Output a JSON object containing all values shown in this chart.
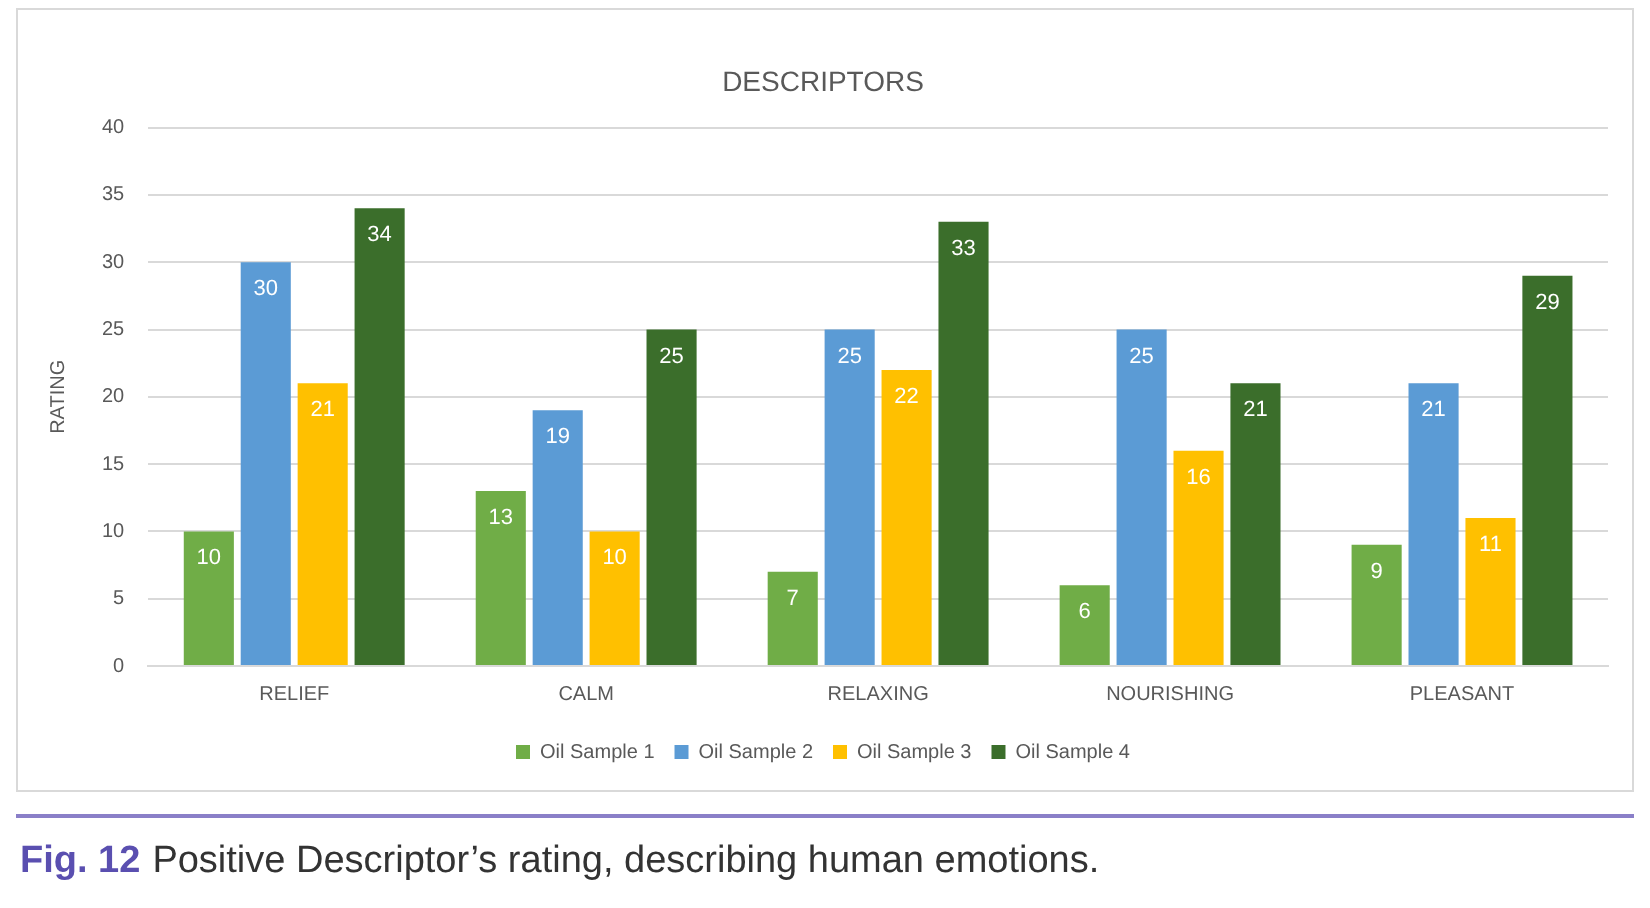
{
  "chart_data": {
    "type": "bar",
    "title": "DESCRIPTORS",
    "ylabel": "RATING",
    "categories": [
      "RELIEF",
      "CALM",
      "RELAXING",
      "NOURISHING",
      "PLEASANT"
    ],
    "series": [
      {
        "name": "Oil Sample 1",
        "color": "#70ad47",
        "values": [
          10,
          13,
          7,
          6,
          9
        ]
      },
      {
        "name": "Oil Sample 2",
        "color": "#5b9bd5",
        "values": [
          30,
          19,
          25,
          25,
          21
        ]
      },
      {
        "name": "Oil Sample 3",
        "color": "#ffc000",
        "values": [
          21,
          10,
          22,
          16,
          11
        ]
      },
      {
        "name": "Oil Sample 4",
        "color": "#3b6e2b",
        "values": [
          34,
          25,
          33,
          21,
          29
        ]
      }
    ],
    "ylim": [
      0,
      40
    ],
    "yticks": [
      0,
      5,
      10,
      15,
      20,
      25,
      30,
      35,
      40
    ],
    "grid": "y",
    "legend": "bottom",
    "data_labels": true,
    "annotations": [
      "Fig. 12",
      "Positive Descriptor’s rating, describing human emotions."
    ]
  }
}
